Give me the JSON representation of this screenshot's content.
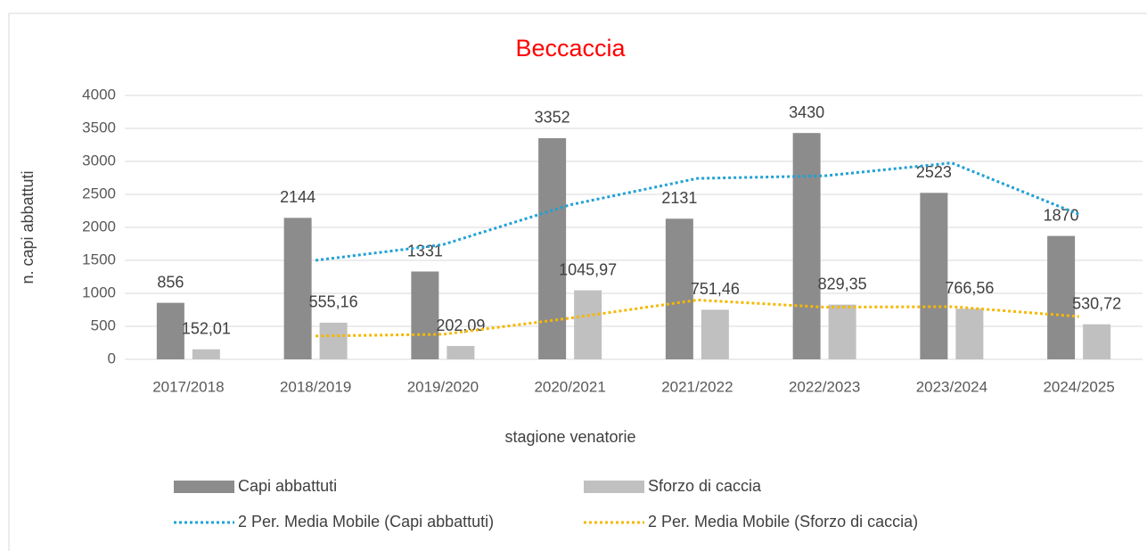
{
  "chart_data": {
    "type": "bar",
    "title": "Beccaccia",
    "title_color": "#ff0000",
    "x_label": "stagione venatorie",
    "y_label": "n. capi abbattuti",
    "categories": [
      "2017/2018",
      "2018/2019",
      "2019/2020",
      "2020/2021",
      "2021/2022",
      "2022/2023",
      "2023/2024",
      "2024/2025"
    ],
    "series": [
      {
        "name": "Capi abbattuti",
        "color": "#8c8c8c",
        "kind": "bar",
        "values": [
          856,
          2144,
          1331,
          3352,
          2131,
          3430,
          2523,
          1870
        ]
      },
      {
        "name": "Sforzo di caccia",
        "color": "#c0c0c0",
        "kind": "bar",
        "values": [
          152.01,
          555.16,
          202.09,
          1045.97,
          751.46,
          829.35,
          766.56,
          530.72
        ],
        "value_labels": [
          "152,01",
          "555,16",
          "202,09",
          "1045,97",
          "751,46",
          "829,35",
          "766,56",
          "530,72"
        ]
      },
      {
        "name": "2 Per. Media Mobile (Capi abbattuti)",
        "color": "#21a1d6",
        "kind": "line",
        "dotted": true,
        "values": [
          null,
          1500,
          1737.5,
          2341.5,
          2741.5,
          2780.5,
          2976.5,
          2196.5
        ]
      },
      {
        "name": "2 Per. Media Mobile (Sforzo di caccia)",
        "color": "#f5b800",
        "kind": "line",
        "dotted": true,
        "values": [
          null,
          353.585,
          378.625,
          624.03,
          898.715,
          790.405,
          797.955,
          648.64
        ]
      }
    ],
    "ylim": [
      0,
      4000
    ],
    "yticks": [
      0,
      500,
      1000,
      1500,
      2000,
      2500,
      3000,
      3500,
      4000
    ],
    "grid": true
  }
}
